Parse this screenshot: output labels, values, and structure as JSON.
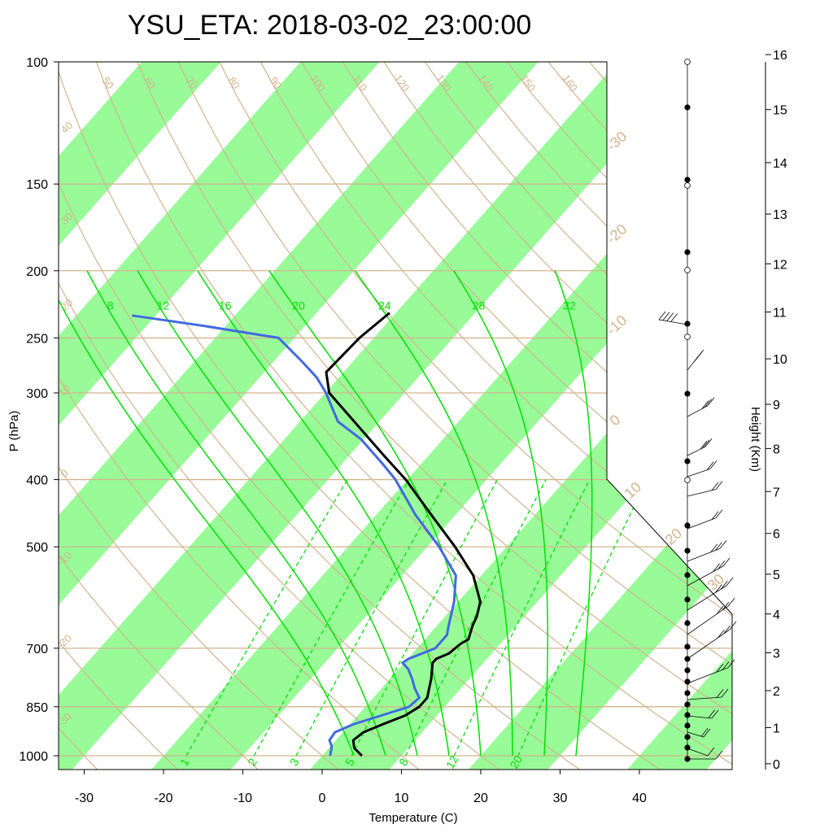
{
  "chart_data": {
    "type": "skew-t",
    "title": "YSU_ETA: 2018-03-02_23:00:00",
    "xlabel": "Temperature (C)",
    "ylabel": "P (hPa)",
    "ylabel_right": "Height (Km)",
    "x_ticks": [
      "-30",
      "-20",
      "-10",
      "0",
      "10",
      "20",
      "30",
      "40"
    ],
    "x_tick_values": [
      -30,
      -20,
      -10,
      0,
      10,
      20,
      30,
      40
    ],
    "p_ticks": [
      "100",
      "150",
      "200",
      "250",
      "300",
      "400",
      "500",
      "700",
      "850",
      "1000"
    ],
    "p_tick_values": [
      100,
      150,
      200,
      250,
      300,
      400,
      500,
      700,
      850,
      1000
    ],
    "height_ticks": [
      "0",
      "1",
      "2",
      "3",
      "4",
      "5",
      "6",
      "7",
      "8",
      "9",
      "10",
      "11",
      "12",
      "13",
      "14",
      "15",
      "16"
    ],
    "height_tick_values": [
      0,
      1,
      2,
      3,
      4,
      5,
      6,
      7,
      8,
      9,
      10,
      11,
      12,
      13,
      14,
      15,
      16
    ],
    "dry_adiabat_labels": [
      "50",
      "60",
      "70",
      "80",
      "90",
      "100",
      "110",
      "120",
      "130",
      "140",
      "150",
      "160"
    ],
    "isotherm_labels": [
      "40",
      "30",
      "20",
      "10",
      "0",
      "-10",
      "-20",
      "-30",
      "-30",
      "-20",
      "-10",
      "0",
      "10",
      "20",
      "30"
    ],
    "moist_adiabat_labels": [
      "8",
      "12",
      "16",
      "20",
      "24",
      "28",
      "32"
    ],
    "mixing_ratio_labels": [
      "1",
      "2",
      "3",
      "5",
      "8",
      "12",
      "20"
    ],
    "colors": {
      "temperature": "#000000",
      "dewpoint": "#4169e1",
      "isotherm_band": "#98fb98",
      "dry_adiabat": "#d2b48c",
      "moist_adiabat": "#00e000",
      "mixing_ratio": "#00e000"
    },
    "series": [
      {
        "name": "",
        "role": "temperature",
        "points": [
          [
            1000,
            5.0
          ],
          [
            975,
            3.2
          ],
          [
            950,
            2.2
          ],
          [
            925,
            2.6
          ],
          [
            900,
            4.2
          ],
          [
            875,
            6.0
          ],
          [
            850,
            6.8
          ],
          [
            825,
            6.8
          ],
          [
            800,
            6.0
          ],
          [
            775,
            5.2
          ],
          [
            750,
            4.2
          ],
          [
            735,
            3.6
          ],
          [
            725,
            3.6
          ],
          [
            712,
            4.6
          ],
          [
            700,
            4.8
          ],
          [
            690,
            5.0
          ],
          [
            680,
            5.5
          ],
          [
            665,
            5.0
          ],
          [
            650,
            4.5
          ],
          [
            630,
            4.0
          ],
          [
            600,
            2.8
          ],
          [
            550,
            -1.0
          ],
          [
            500,
            -6.5
          ],
          [
            450,
            -13.0
          ],
          [
            400,
            -20.2
          ],
          [
            370,
            -25.5
          ],
          [
            300,
            -39.5
          ],
          [
            280,
            -42.2
          ],
          [
            250,
            -41.8
          ],
          [
            230,
            -40.8
          ]
        ]
      },
      {
        "name": "",
        "role": "dewpoint",
        "points": [
          [
            1000,
            1.0
          ],
          [
            970,
            0.2
          ],
          [
            950,
            -0.8
          ],
          [
            925,
            -1.0
          ],
          [
            900,
            0.5
          ],
          [
            875,
            3.0
          ],
          [
            850,
            5.5
          ],
          [
            825,
            5.8
          ],
          [
            800,
            4.2
          ],
          [
            775,
            2.8
          ],
          [
            750,
            1.2
          ],
          [
            735,
            -0.2
          ],
          [
            725,
            0.1
          ],
          [
            700,
            2.3
          ],
          [
            670,
            2.3
          ],
          [
            650,
            1.5
          ],
          [
            600,
            -0.5
          ],
          [
            550,
            -3.2
          ],
          [
            500,
            -8.5
          ],
          [
            450,
            -15.0
          ],
          [
            400,
            -21.5
          ],
          [
            380,
            -24.8
          ],
          [
            350,
            -30.3
          ],
          [
            330,
            -35.2
          ],
          [
            310,
            -38.3
          ],
          [
            300,
            -39.9
          ],
          [
            285,
            -42.8
          ],
          [
            270,
            -46.5
          ],
          [
            250,
            -52.0
          ],
          [
            240,
            -63.0
          ],
          [
            232,
            -73.0
          ]
        ]
      }
    ],
    "wind_barbs": "present along right axis (0-11 km)"
  }
}
